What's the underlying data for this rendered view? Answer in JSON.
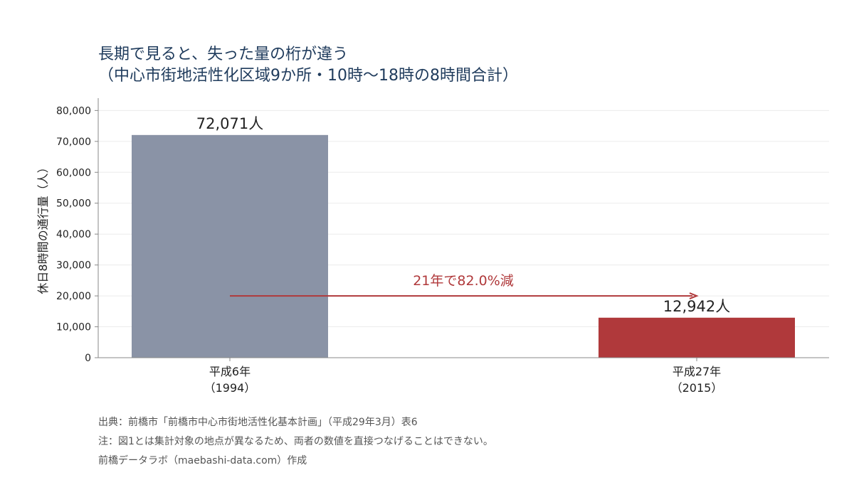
{
  "title": {
    "line1": "長期で見ると、失った量の桁が違う",
    "line2": "（中心市街地活性化区域9か所・10時〜18時の8時間合計）"
  },
  "colors": {
    "title": "#1f3b5c",
    "bar_1994": "#8a93a6",
    "bar_2015": "#b0393b",
    "arrow": "#b0393b",
    "grid": "#ececec",
    "axis": "#888888"
  },
  "chart_data": {
    "type": "bar",
    "categories": [
      "平成6年\n（1994）",
      "平成27年\n（2015）"
    ],
    "values": [
      72071,
      12942
    ],
    "data_labels": [
      "72,071人",
      "12,942人"
    ],
    "ylabel": "休日8時間の通行量（人）",
    "ylim": [
      0,
      84000
    ],
    "yticks": [
      0,
      10000,
      20000,
      30000,
      40000,
      50000,
      60000,
      70000,
      80000
    ],
    "ytick_labels": [
      "0",
      "10,000",
      "20,000",
      "30,000",
      "40,000",
      "50,000",
      "60,000",
      "70,000",
      "80,000"
    ],
    "grid": true,
    "annotation": {
      "text": "21年で82.0%減",
      "arrow_y": 20000
    }
  },
  "notes": [
    "出典：前橋市「前橋市中心市街地活性化基本計画」（平成29年3月）表6",
    "注：図1とは集計対象の地点が異なるため、両者の数値を直接つなげることはできない。",
    "前橋データラボ（maebashi-data.com）作成"
  ]
}
